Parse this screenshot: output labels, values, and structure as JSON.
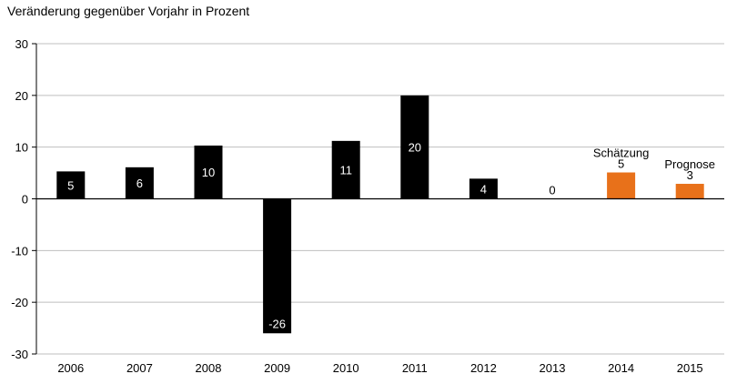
{
  "chart_data": {
    "type": "bar",
    "title": "Veränderung gegenüber Vorjahr in Prozent",
    "xlabel": "",
    "ylabel": "",
    "categories": [
      "2006",
      "2007",
      "2008",
      "2009",
      "2010",
      "2011",
      "2012",
      "2013",
      "2014",
      "2015"
    ],
    "values": [
      5.3,
      6.1,
      10.3,
      -26,
      11.2,
      20,
      3.9,
      0,
      5.1,
      2.9
    ],
    "data_labels": [
      "5",
      "6",
      "10",
      "-26",
      "11",
      "20",
      "4",
      "0",
      "5",
      "3"
    ],
    "annotations": [
      "",
      "",
      "",
      "",
      "",
      "",
      "",
      "",
      "Schätzung",
      "Prognose"
    ],
    "bar_colors": [
      "#000000",
      "#000000",
      "#000000",
      "#000000",
      "#000000",
      "#000000",
      "#000000",
      "#000000",
      "#e8711a",
      "#e8711a"
    ],
    "ylim": [
      -30,
      30
    ],
    "yticks": [
      -30,
      -20,
      -10,
      0,
      10,
      20,
      30
    ],
    "grid": true,
    "legend": "none"
  }
}
